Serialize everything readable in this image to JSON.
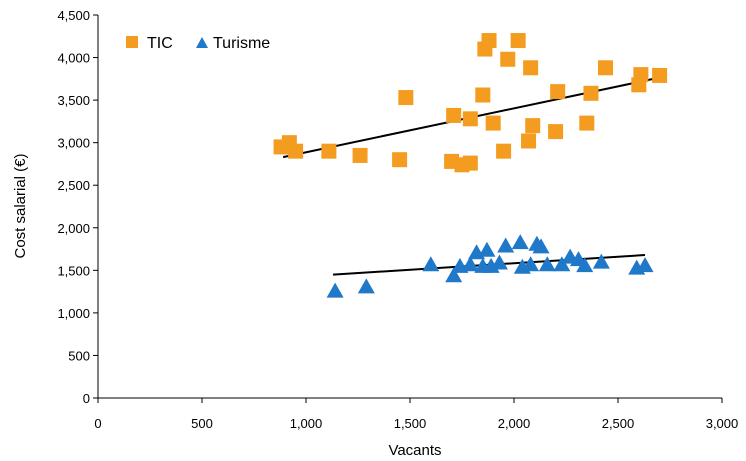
{
  "chart_data": {
    "type": "scatter",
    "xlabel": "Vacants",
    "ylabel": "Cost salarial (€)",
    "xlim": [
      0,
      3000
    ],
    "ylim": [
      0,
      4500
    ],
    "x_ticks": [
      0,
      500,
      1000,
      1500,
      2000,
      2500,
      3000
    ],
    "x_tick_labels": [
      "0",
      "500",
      "1,000",
      "1,500",
      "2,000",
      "2,500",
      "3,000"
    ],
    "y_ticks": [
      0,
      500,
      1000,
      1500,
      2000,
      2500,
      3000,
      3500,
      4000,
      4500
    ],
    "y_tick_labels": [
      "0",
      "500",
      "1,000",
      "1,500",
      "2,000",
      "2,500",
      "3,000",
      "3,500",
      "4,000",
      "4,500"
    ],
    "grid": false,
    "legend_position": "top-left",
    "series": [
      {
        "name": "TIC",
        "marker": "square",
        "color": "#F39C1F",
        "points": [
          [
            880,
            2950
          ],
          [
            920,
            3000
          ],
          [
            950,
            2900
          ],
          [
            1110,
            2900
          ],
          [
            1260,
            2850
          ],
          [
            1450,
            2800
          ],
          [
            1480,
            3530
          ],
          [
            1700,
            2780
          ],
          [
            1710,
            3320
          ],
          [
            1750,
            2740
          ],
          [
            1790,
            3280
          ],
          [
            1790,
            2760
          ],
          [
            1850,
            3560
          ],
          [
            1860,
            4100
          ],
          [
            1880,
            4200
          ],
          [
            1900,
            3230
          ],
          [
            1950,
            2900
          ],
          [
            1970,
            3980
          ],
          [
            2020,
            4200
          ],
          [
            2070,
            3020
          ],
          [
            2080,
            3880
          ],
          [
            2090,
            3200
          ],
          [
            2200,
            3130
          ],
          [
            2210,
            3600
          ],
          [
            2350,
            3230
          ],
          [
            2370,
            3580
          ],
          [
            2440,
            3880
          ],
          [
            2600,
            3680
          ],
          [
            2610,
            3800
          ],
          [
            2700,
            3790
          ]
        ],
        "trendline": [
          [
            890,
            2830
          ],
          [
            2710,
            3770
          ]
        ]
      },
      {
        "name": "Turisme",
        "marker": "triangle",
        "color": "#1F78C8",
        "points": [
          [
            1140,
            1250
          ],
          [
            1290,
            1300
          ],
          [
            1600,
            1560
          ],
          [
            1710,
            1430
          ],
          [
            1740,
            1540
          ],
          [
            1790,
            1560
          ],
          [
            1820,
            1700
          ],
          [
            1850,
            1540
          ],
          [
            1870,
            1730
          ],
          [
            1890,
            1540
          ],
          [
            1930,
            1580
          ],
          [
            1960,
            1780
          ],
          [
            2030,
            1820
          ],
          [
            2040,
            1530
          ],
          [
            2080,
            1560
          ],
          [
            2110,
            1800
          ],
          [
            2130,
            1770
          ],
          [
            2160,
            1560
          ],
          [
            2230,
            1560
          ],
          [
            2270,
            1650
          ],
          [
            2310,
            1620
          ],
          [
            2340,
            1550
          ],
          [
            2420,
            1590
          ],
          [
            2590,
            1520
          ],
          [
            2630,
            1550
          ]
        ],
        "trendline": [
          [
            1130,
            1450
          ],
          [
            2630,
            1680
          ]
        ]
      }
    ]
  }
}
